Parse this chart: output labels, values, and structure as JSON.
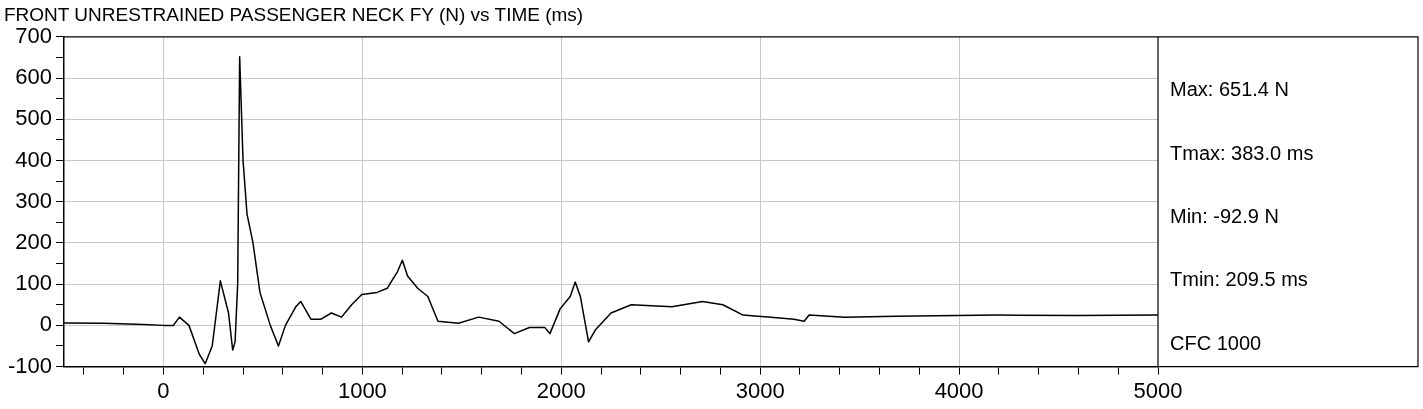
{
  "chart_data": {
    "type": "line",
    "title": "FRONT UNRESTRAINED PASSENGER NECK FY (N) vs TIME (ms)",
    "x": [
      -500,
      -300,
      -100,
      0,
      50,
      80,
      128,
      180,
      209.5,
      245,
      286,
      327,
      348,
      360,
      373,
      383,
      400,
      420,
      450,
      485,
      537,
      578,
      613,
      665,
      690,
      741,
      792,
      844,
      895,
      946,
      997,
      1074,
      1125,
      1150,
      1176,
      1201,
      1227,
      1278,
      1329,
      1380,
      1483,
      1585,
      1687,
      1764,
      1840,
      1917,
      1943,
      1994,
      2045,
      2070,
      2096,
      2137,
      2173,
      2250,
      2352,
      2556,
      2710,
      2812,
      2914,
      3170,
      3221,
      3246,
      3425,
      3681,
      4192,
      4600,
      5000
    ],
    "series": [
      {
        "color": "#000000",
        "values": [
          6,
          5,
          2,
          0,
          0,
          20,
          0,
          -70,
          -92.9,
          -50,
          108,
          30,
          -60,
          -40,
          100,
          651.4,
          400,
          270,
          200,
          80,
          0,
          -50,
          0,
          45,
          58,
          15,
          15,
          30,
          20,
          50,
          75,
          80,
          90,
          110,
          130,
          158,
          120,
          90,
          70,
          10,
          5,
          20,
          10,
          -20,
          -5,
          -5,
          -20,
          40,
          70,
          105,
          70,
          -40,
          -10,
          30,
          50,
          45,
          58,
          50,
          25,
          15,
          10,
          25,
          20,
          22,
          25,
          24,
          25
        ]
      }
    ],
    "xlim": [
      -500,
      5000
    ],
    "xticks": [
      {
        "value": -400,
        "label": null
      },
      {
        "value": -200,
        "label": null
      },
      0,
      {
        "value": 200,
        "label": null
      },
      {
        "value": 400,
        "label": null
      },
      {
        "value": 600,
        "label": null
      },
      {
        "value": 800,
        "label": null
      },
      1000,
      {
        "value": 1200,
        "label": null
      },
      {
        "value": 1400,
        "label": null
      },
      {
        "value": 1600,
        "label": null
      },
      {
        "value": 1800,
        "label": null
      },
      2000,
      {
        "value": 2200,
        "label": null
      },
      {
        "value": 2400,
        "label": null
      },
      {
        "value": 2600,
        "label": null
      },
      {
        "value": 2800,
        "label": null
      },
      3000,
      {
        "value": 3200,
        "label": null
      },
      {
        "value": 3400,
        "label": null
      },
      {
        "value": 3600,
        "label": null
      },
      {
        "value": 3800,
        "label": null
      },
      4000,
      {
        "value": 4200,
        "label": null
      },
      {
        "value": 4400,
        "label": null
      },
      {
        "value": 4600,
        "label": null
      },
      {
        "value": 4800,
        "label": null
      },
      5000
    ],
    "ylim": [
      -100,
      700
    ],
    "yticks": [
      -100,
      {
        "value": -50,
        "label": null
      },
      0,
      {
        "value": 50,
        "label": null
      },
      100,
      {
        "value": 150,
        "label": null
      },
      200,
      {
        "value": 250,
        "label": null
      },
      300,
      {
        "value": 350,
        "label": null
      },
      400,
      {
        "value": 450,
        "label": null
      },
      500,
      {
        "value": 550,
        "label": null
      },
      600,
      {
        "value": 650,
        "label": null
      },
      700
    ],
    "grid": true,
    "legend": false,
    "marker": "none",
    "line_style": "solid",
    "annotations": [
      "Max: 651.4 N",
      "Tmax: 383.0 ms",
      "Min: -92.9 N",
      "Tmin: 209.5 ms",
      "CFC 1000"
    ]
  }
}
